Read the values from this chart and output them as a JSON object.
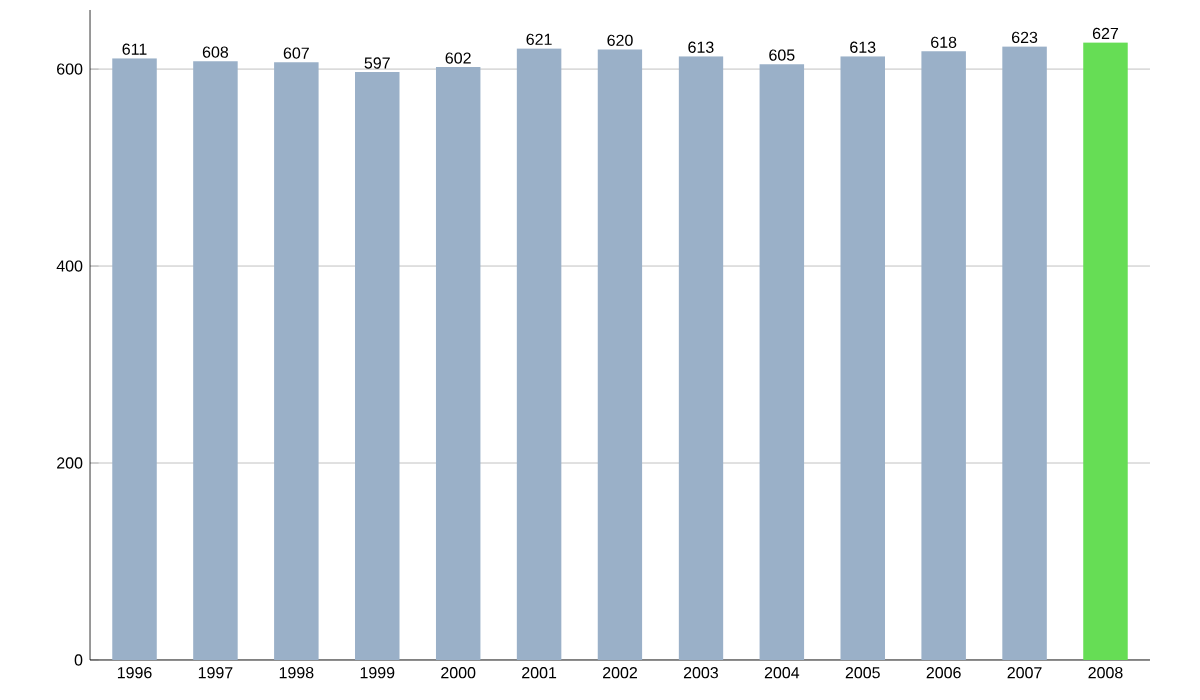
{
  "chart_data": {
    "type": "bar",
    "categories": [
      "1996",
      "1997",
      "1998",
      "1999",
      "2000",
      "2001",
      "2002",
      "2003",
      "2004",
      "2005",
      "2006",
      "2007",
      "2008"
    ],
    "values": [
      611,
      608,
      607,
      597,
      602,
      621,
      620,
      613,
      605,
      613,
      618,
      623,
      627
    ],
    "colors": [
      "#9ab0c8",
      "#9ab0c8",
      "#9ab0c8",
      "#9ab0c8",
      "#9ab0c8",
      "#9ab0c8",
      "#9ab0c8",
      "#9ab0c8",
      "#9ab0c8",
      "#9ab0c8",
      "#9ab0c8",
      "#9ab0c8",
      "#66dd55"
    ],
    "ylim": [
      0,
      660
    ],
    "yticks": [
      0,
      200,
      400,
      600
    ],
    "grid": "y",
    "data_labels": true
  }
}
